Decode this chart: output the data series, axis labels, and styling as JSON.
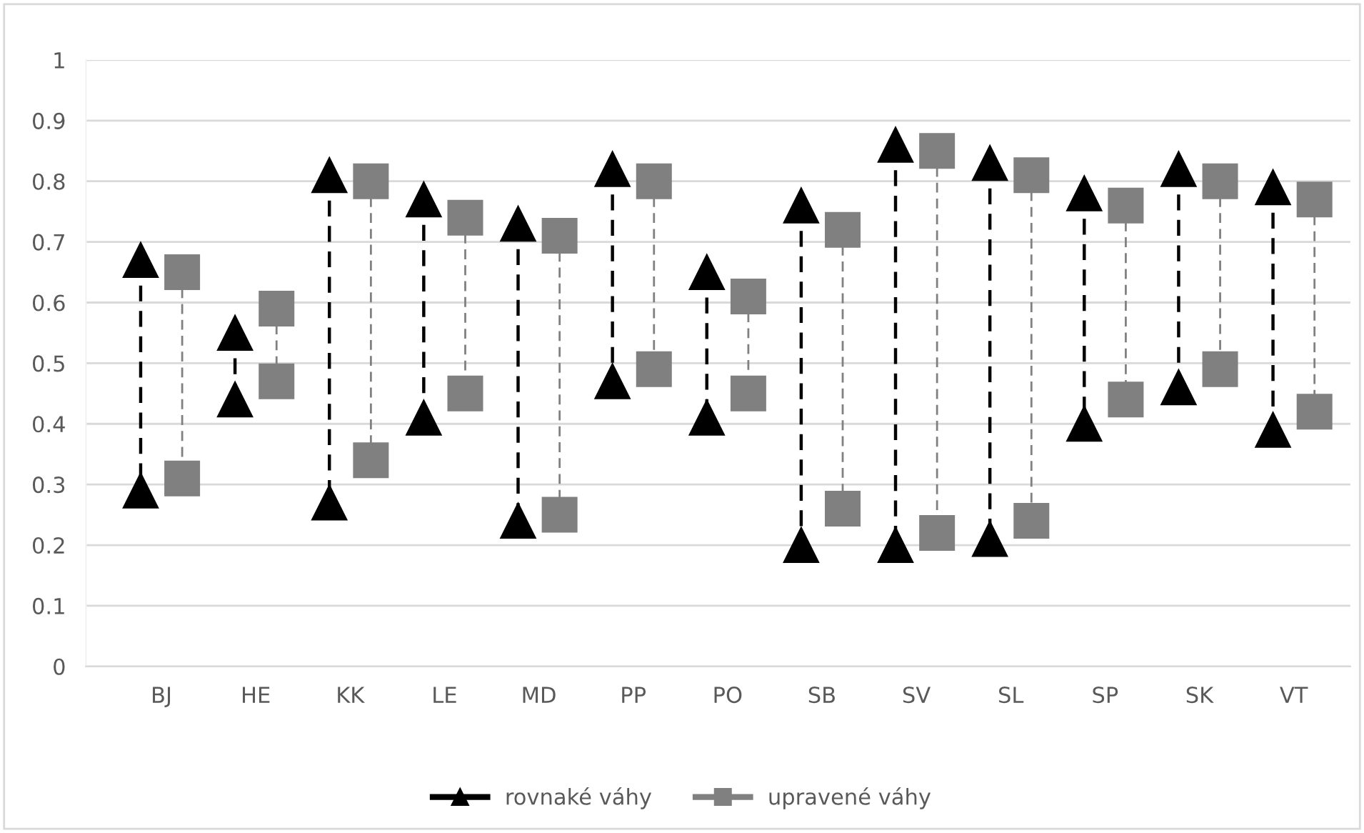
{
  "chart_data": {
    "type": "scatter",
    "categories": [
      "BJ",
      "HE",
      "KK",
      "LE",
      "MD",
      "PP",
      "PO",
      "SB",
      "SV",
      "SL",
      "SP",
      "SK",
      "VT"
    ],
    "series": [
      {
        "name": "rovnaké váhy",
        "color": "#000000",
        "marker": "triangle",
        "values": [
          0.67,
          0.55,
          0.81,
          0.77,
          0.73,
          0.82,
          0.65,
          0.76,
          0.86,
          0.83,
          0.78,
          0.82,
          0.79
        ]
      },
      {
        "color": "#000000",
        "marker": "triangle",
        "line_style": "dashed",
        "values": [
          0.29,
          0.44,
          0.27,
          0.41,
          0.24,
          0.47,
          0.41,
          0.2,
          0.2,
          0.21,
          0.4,
          0.46,
          0.39
        ]
      },
      {
        "name": "upravené váhy",
        "color": "#808080",
        "marker": "square",
        "values": [
          0.65,
          0.59,
          0.8,
          0.74,
          0.71,
          0.8,
          0.61,
          0.72,
          0.85,
          0.81,
          0.76,
          0.8,
          0.77
        ]
      },
      {
        "color": "#808080",
        "marker": "square",
        "line_style": "dashed",
        "values": [
          0.31,
          0.47,
          0.34,
          0.45,
          0.25,
          0.49,
          0.45,
          0.26,
          0.22,
          0.24,
          0.44,
          0.49,
          0.42
        ]
      }
    ],
    "ylim": [
      0,
      1
    ],
    "yticks": [
      0,
      0.1,
      0.2,
      0.3,
      0.4,
      0.5,
      0.6,
      0.7,
      0.8,
      0.9,
      1
    ],
    "grid": "y",
    "legend": "bottom"
  }
}
